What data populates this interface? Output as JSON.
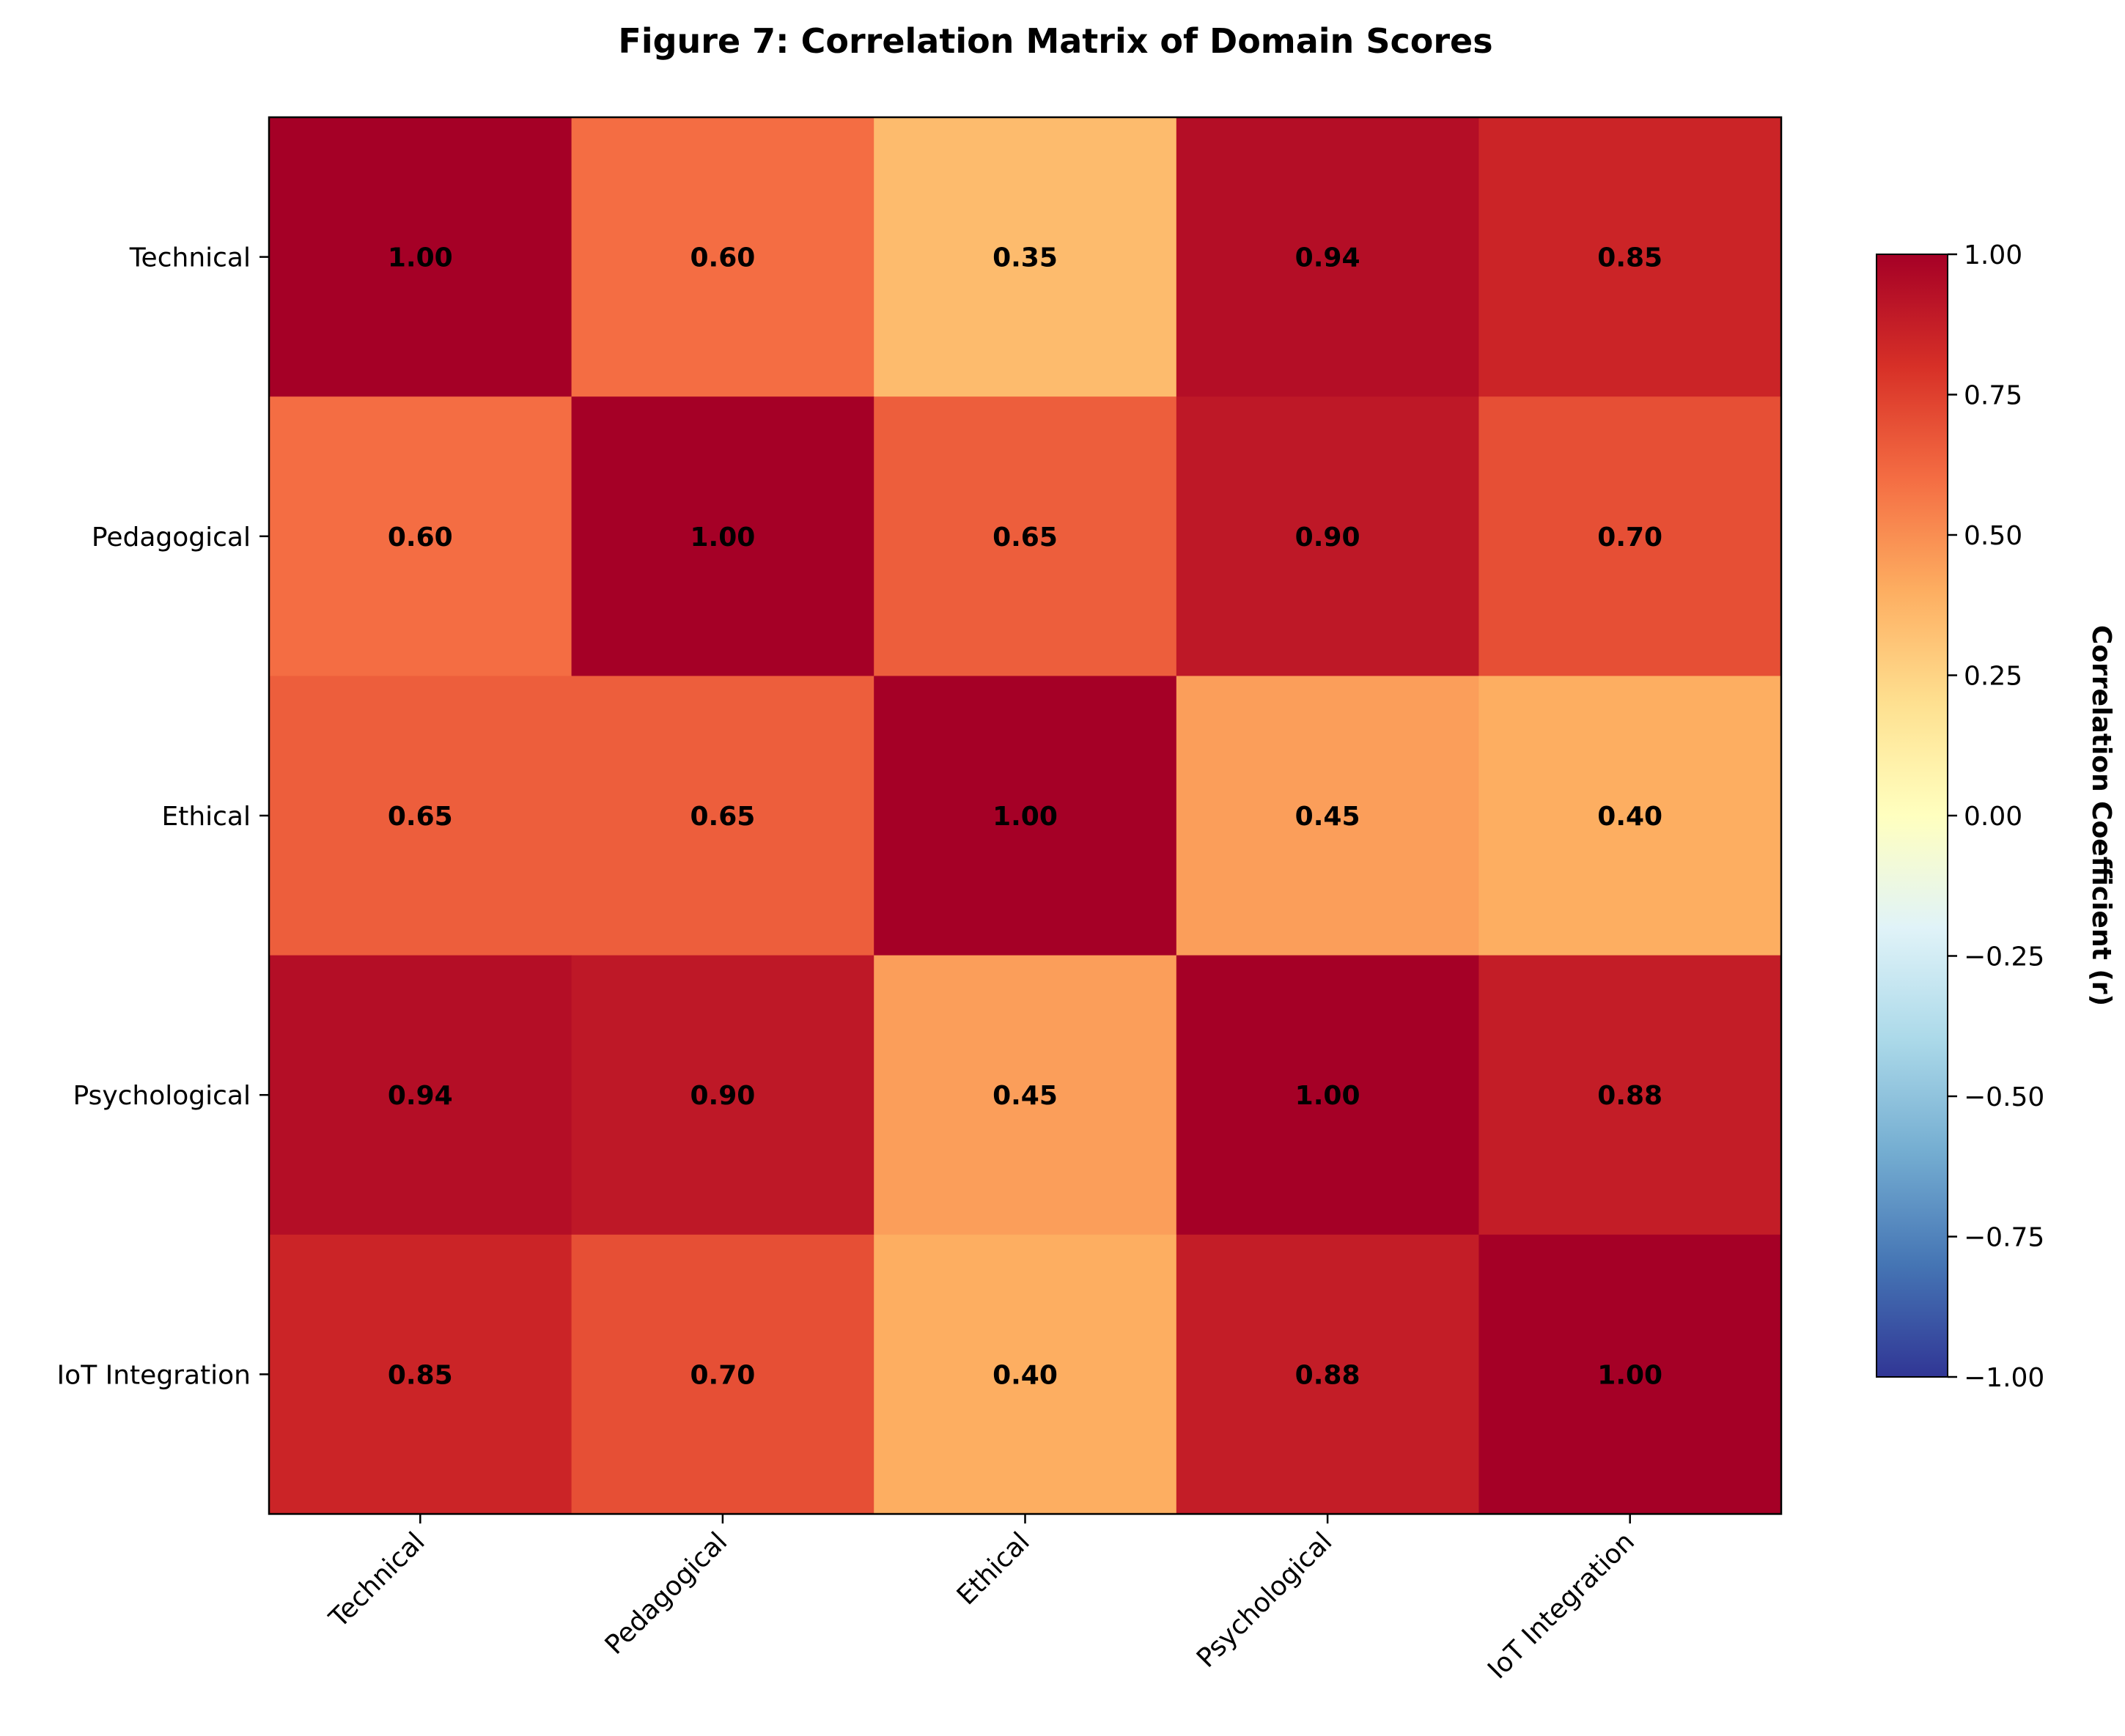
{
  "chart_data": {
    "type": "heatmap",
    "title": "Figure 7: Correlation Matrix of Domain Scores",
    "row_labels": [
      "Technical",
      "Pedagogical",
      "Ethical",
      "Psychological",
      "IoT Integration"
    ],
    "col_labels": [
      "Technical",
      "Pedagogical",
      "Ethical",
      "Psychological",
      "IoT Integration"
    ],
    "values": [
      [
        1.0,
        0.6,
        0.35,
        0.94,
        0.85
      ],
      [
        0.6,
        1.0,
        0.65,
        0.9,
        0.7
      ],
      [
        0.65,
        0.65,
        1.0,
        0.45,
        0.4
      ],
      [
        0.94,
        0.9,
        0.45,
        1.0,
        0.88
      ],
      [
        0.85,
        0.7,
        0.4,
        0.88,
        1.0
      ]
    ],
    "value_labels": [
      [
        "1.00",
        "0.60",
        "0.35",
        "0.94",
        "0.85"
      ],
      [
        "0.60",
        "1.00",
        "0.65",
        "0.90",
        "0.70"
      ],
      [
        "0.65",
        "0.65",
        "1.00",
        "0.45",
        "0.40"
      ],
      [
        "0.94",
        "0.90",
        "0.45",
        "1.00",
        "0.88"
      ],
      [
        "0.85",
        "0.70",
        "0.40",
        "0.88",
        "1.00"
      ]
    ],
    "colormap": "RdYlBu_r",
    "vmin": -1.0,
    "vmax": 1.0,
    "colorbar": {
      "label": "Correlation Coefficient (r)",
      "ticks": [
        1.0,
        0.75,
        0.5,
        0.25,
        0.0,
        -0.25,
        -0.5,
        -0.75,
        -1.0
      ],
      "tick_labels": [
        "1.00",
        "0.75",
        "0.50",
        "0.25",
        "0.00",
        "−0.25",
        "−0.50",
        "−0.75",
        "−1.00"
      ]
    }
  }
}
